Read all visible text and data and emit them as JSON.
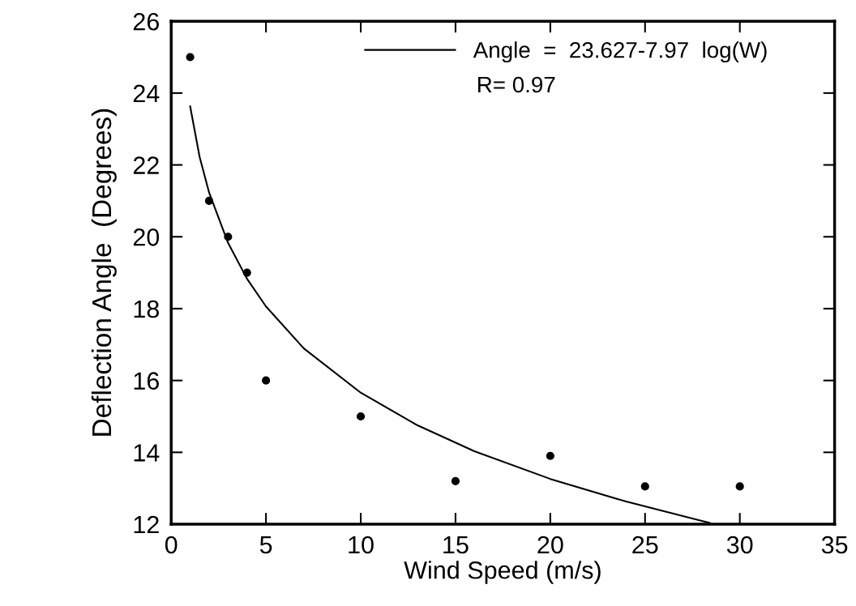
{
  "chart_data": {
    "type": "scatter",
    "xlabel": "Wind Speed (m/s)",
    "ylabel": "Deflection Angle  (Degrees)",
    "xlim": [
      0,
      35
    ],
    "xticks": [
      0,
      5,
      10,
      15,
      20,
      25,
      30,
      35
    ],
    "ylim": [
      12,
      26
    ],
    "yticks": [
      12,
      14,
      16,
      18,
      20,
      22,
      24,
      26
    ],
    "x": [
      1,
      2,
      3,
      4,
      5,
      10,
      15,
      20,
      25,
      30
    ],
    "series": [
      {
        "color": "#000000",
        "marker": "circle",
        "values": [
          25,
          21,
          20,
          19,
          16,
          15,
          13.2,
          13.9,
          13.05,
          13.05
        ]
      },
      {
        "type": "line",
        "name": "Angle  =  23.627-7.97  log(W)",
        "color": "#000000",
        "marker": "none",
        "line_style": "solid",
        "x": [
          1,
          1.5,
          2,
          3,
          4,
          5,
          7,
          10,
          13,
          16,
          20,
          24,
          28,
          28.4
        ],
        "values": [
          23.63,
          22.22,
          21.23,
          19.83,
          18.83,
          18.06,
          16.89,
          15.66,
          14.75,
          14.03,
          13.26,
          12.63,
          12.09,
          12.04
        ]
      }
    ],
    "annotations": [
      "R= 0.97"
    ],
    "legend": "top right",
    "grid": false
  }
}
